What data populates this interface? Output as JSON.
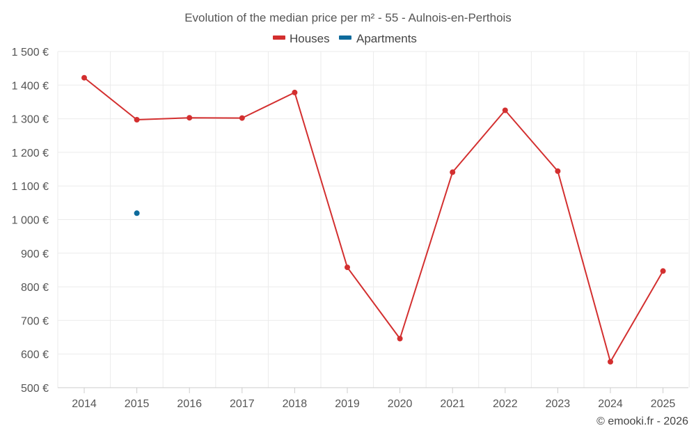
{
  "chart_data": {
    "type": "line",
    "title": "Evolution of the median price per m² - 55 - Aulnois-en-Perthois",
    "xlabel": "",
    "ylabel": "",
    "categories": [
      "2014",
      "2015",
      "2016",
      "2017",
      "2018",
      "2019",
      "2020",
      "2021",
      "2022",
      "2023",
      "2024",
      "2025"
    ],
    "ylim": [
      500,
      1500
    ],
    "yticks": [
      500,
      600,
      700,
      800,
      900,
      1000,
      1100,
      1200,
      1300,
      1400,
      1500
    ],
    "ytick_labels": [
      "500 €",
      "600 €",
      "700 €",
      "800 €",
      "900 €",
      "1 000 €",
      "1 100 €",
      "1 200 €",
      "1 300 €",
      "1 400 €",
      "1 500 €"
    ],
    "grid": true,
    "legend_position": "top-center",
    "series": [
      {
        "name": "Houses",
        "color": "#d32f2f",
        "values": [
          1422,
          1297,
          1303,
          1302,
          1378,
          858,
          646,
          1141,
          1325,
          1144,
          577,
          847
        ]
      },
      {
        "name": "Apartments",
        "color": "#0e6b9c",
        "values": [
          null,
          1019,
          null,
          null,
          null,
          null,
          null,
          null,
          null,
          null,
          null,
          null
        ]
      }
    ]
  },
  "credit": "© emooki.fr - 2026"
}
